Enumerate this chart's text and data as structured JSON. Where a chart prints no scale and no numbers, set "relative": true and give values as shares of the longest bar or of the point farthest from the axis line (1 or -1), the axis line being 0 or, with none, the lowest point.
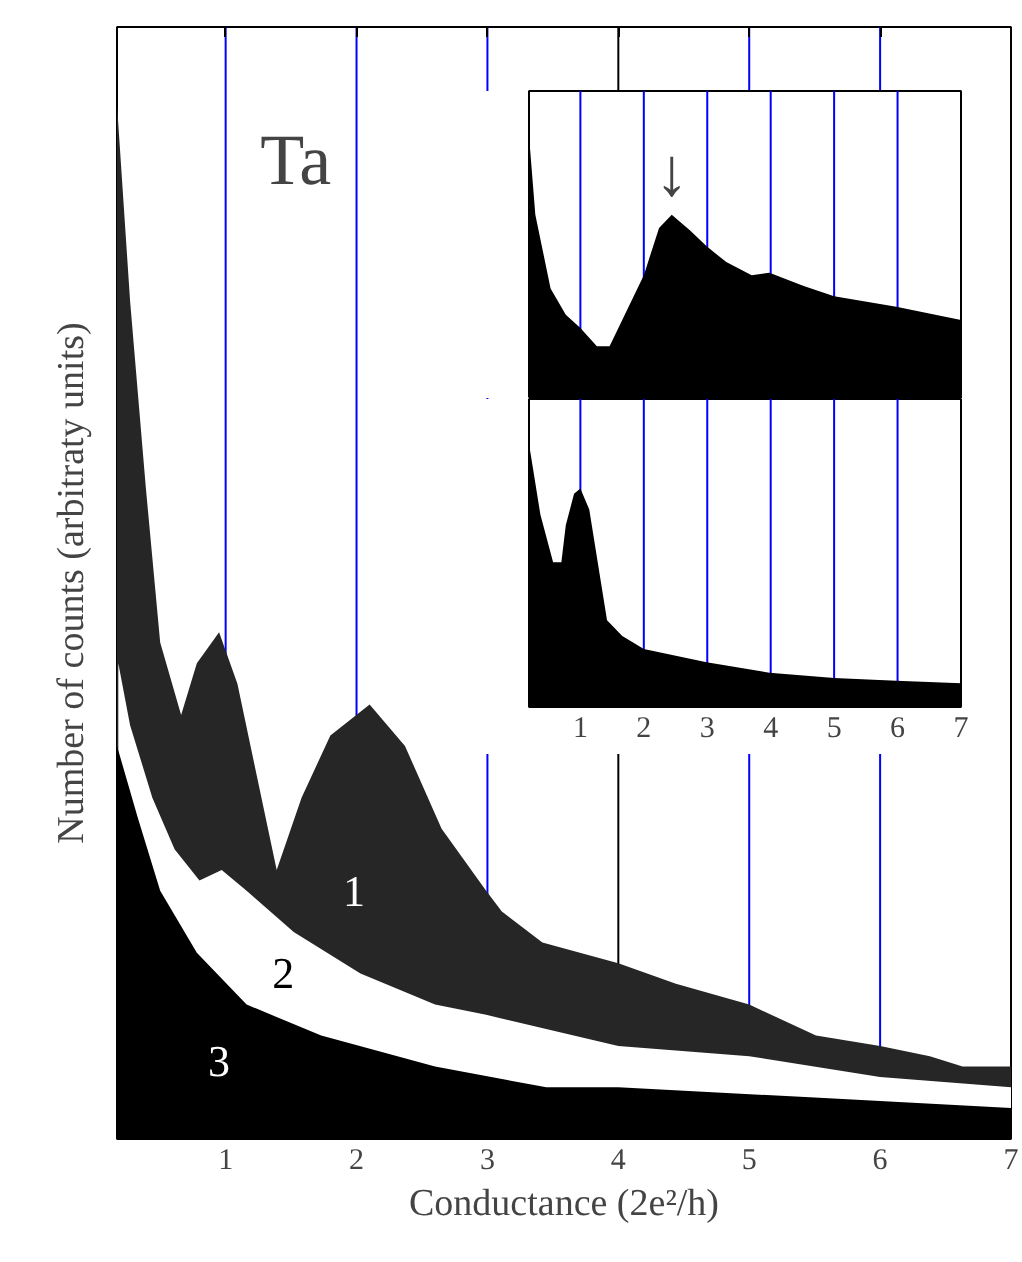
{
  "chart_data": [
    {
      "type": "area",
      "relative": true,
      "xlabel": "Conductance (2e²/h)",
      "ylabel": "Number of counts (arbitraty units)",
      "xlim": [
        0.17,
        7.0
      ],
      "xticks": [
        1,
        2,
        3,
        4,
        5,
        6,
        7
      ],
      "annotations": [
        "Ta"
      ],
      "series": [
        {
          "name": "1",
          "color": "#262626",
          "x": [
            0.17,
            0.27,
            0.39,
            0.5,
            0.66,
            0.78,
            0.95,
            1.09,
            1.24,
            1.39,
            1.58,
            1.8,
            2.1,
            2.37,
            2.65,
            2.99,
            3.11,
            3.42,
            4.0,
            4.44,
            5.0,
            5.51,
            6.0,
            6.38,
            6.63,
            7.0
          ],
          "values": [
            1.0,
            0.81,
            0.63,
            0.48,
            0.41,
            0.46,
            0.49,
            0.44,
            0.35,
            0.26,
            0.33,
            0.39,
            0.42,
            0.38,
            0.3,
            0.24,
            0.22,
            0.19,
            0.17,
            0.15,
            0.13,
            0.1,
            0.09,
            0.08,
            0.07,
            0.07
          ]
        },
        {
          "name": "2",
          "color": "#ffffff",
          "x": [
            0.18,
            0.27,
            0.44,
            0.61,
            0.8,
            0.97,
            1.16,
            1.52,
            2.03,
            2.6,
            2.99,
            4.0,
            5.0,
            6.0,
            7.0
          ],
          "values": [
            0.46,
            0.4,
            0.33,
            0.28,
            0.25,
            0.26,
            0.24,
            0.2,
            0.16,
            0.13,
            0.12,
            0.09,
            0.08,
            0.06,
            0.05
          ]
        },
        {
          "name": "3",
          "color": "#000000",
          "x": [
            0.17,
            0.33,
            0.5,
            0.78,
            1.16,
            1.73,
            2.6,
            3.45,
            4.0,
            5.5,
            7.0
          ],
          "values": [
            0.38,
            0.31,
            0.24,
            0.18,
            0.13,
            0.1,
            0.07,
            0.05,
            0.05,
            0.04,
            0.03
          ]
        }
      ],
      "ref_lines": [
        {
          "axis": "x",
          "value": 1,
          "color": "#0000ff"
        },
        {
          "axis": "x",
          "value": 2,
          "color": "#0000ff"
        },
        {
          "axis": "x",
          "value": 3,
          "color": "#0000ff"
        },
        {
          "axis": "x",
          "value": 4,
          "color": "#000000"
        },
        {
          "axis": "x",
          "value": 5,
          "color": "#0000ff"
        },
        {
          "axis": "x",
          "value": 6,
          "color": "#0000ff"
        }
      ]
    },
    {
      "type": "area",
      "relative": true,
      "xlim": [
        0.19,
        7.0
      ],
      "xticks": [
        1,
        2,
        3,
        4,
        5,
        6,
        7
      ],
      "tick_labels": false,
      "annotations": [
        {
          "text": "↓",
          "x": 2.44,
          "y": 0.7
        }
      ],
      "series": [
        {
          "color": "#000000",
          "x": [
            0.19,
            0.29,
            0.53,
            0.77,
            1.0,
            1.26,
            1.46,
            1.66,
            2.0,
            2.24,
            2.44,
            2.73,
            2.99,
            3.3,
            3.7,
            3.98,
            4.51,
            5.0,
            5.98,
            7.0
          ],
          "values": [
            1.0,
            0.7,
            0.42,
            0.32,
            0.27,
            0.2,
            0.2,
            0.3,
            0.47,
            0.65,
            0.7,
            0.64,
            0.58,
            0.52,
            0.47,
            0.48,
            0.43,
            0.39,
            0.35,
            0.3
          ]
        }
      ],
      "ref_lines": [
        {
          "axis": "x",
          "value": 1,
          "color": "#0000ff"
        },
        {
          "axis": "x",
          "value": 2,
          "color": "#0000ff"
        },
        {
          "axis": "x",
          "value": 3,
          "color": "#0000ff"
        },
        {
          "axis": "x",
          "value": 4,
          "color": "#0000ff"
        },
        {
          "axis": "x",
          "value": 5,
          "color": "#0000ff"
        },
        {
          "axis": "x",
          "value": 6,
          "color": "#0000ff"
        }
      ]
    },
    {
      "type": "area",
      "relative": true,
      "xlim": [
        0.19,
        7.0
      ],
      "xticks": [
        1,
        2,
        3,
        4,
        5,
        6,
        7
      ],
      "tick_labels": "x",
      "series": [
        {
          "color": "#000000",
          "x": [
            0.19,
            0.37,
            0.57,
            0.7,
            0.77,
            0.9,
            1.0,
            1.14,
            1.26,
            1.42,
            1.66,
            2.0,
            2.99,
            3.98,
            5.0,
            5.98,
            7.0
          ],
          "values": [
            1.0,
            0.73,
            0.55,
            0.55,
            0.69,
            0.81,
            0.83,
            0.75,
            0.57,
            0.33,
            0.27,
            0.22,
            0.17,
            0.13,
            0.11,
            0.1,
            0.09
          ]
        }
      ],
      "ref_lines": [
        {
          "axis": "x",
          "value": 1,
          "color": "#0000ff"
        },
        {
          "axis": "x",
          "value": 2,
          "color": "#0000ff"
        },
        {
          "axis": "x",
          "value": 3,
          "color": "#0000ff"
        },
        {
          "axis": "x",
          "value": 4,
          "color": "#0000ff"
        },
        {
          "axis": "x",
          "value": 5,
          "color": "#0000ff"
        },
        {
          "axis": "x",
          "value": 6,
          "color": "#0000ff"
        }
      ]
    }
  ]
}
